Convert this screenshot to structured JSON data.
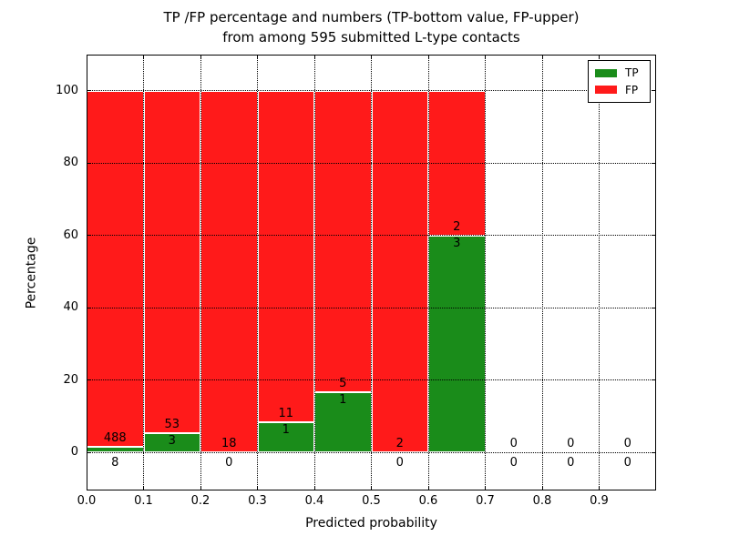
{
  "chart_data": {
    "type": "bar",
    "stacked": true,
    "title": "TP /FP percentage and numbers (TP-bottom value, FP-upper) from among 595 submitted L-type contacts",
    "title_lines": [
      "TP /FP percentage and numbers (TP-bottom value, FP-upper)",
      "from among 595 submitted L-type contacts"
    ],
    "xlabel": "Predicted probability",
    "ylabel": "Percentage",
    "xlim": [
      0.0,
      1.0
    ],
    "ylim": [
      -10.5,
      110
    ],
    "x_ticks": [
      0.0,
      0.1,
      0.2,
      0.3,
      0.4,
      0.5,
      0.6,
      0.7,
      0.8,
      0.9
    ],
    "x_tick_labels": [
      "0.0",
      "0.1",
      "0.2",
      "0.3",
      "0.4",
      "0.5",
      "0.6",
      "0.7",
      "0.8",
      "0.9"
    ],
    "y_ticks": [
      0,
      20,
      40,
      60,
      80,
      100
    ],
    "y_tick_labels": [
      "0",
      "20",
      "40",
      "60",
      "80",
      "100"
    ],
    "grid": true,
    "total_contacts": 595,
    "tp_color": "#1a8c1a",
    "fp_color": "#ff1a1a",
    "bar_edge_color": "#ffffff",
    "bins": [
      {
        "range": [
          0.0,
          0.1
        ],
        "tp": 8,
        "fp": 488,
        "tp_pct": 1.61,
        "fp_pct": 98.39
      },
      {
        "range": [
          0.1,
          0.2
        ],
        "tp": 3,
        "fp": 53,
        "tp_pct": 5.36,
        "fp_pct": 94.64
      },
      {
        "range": [
          0.2,
          0.3
        ],
        "tp": 0,
        "fp": 18,
        "tp_pct": 0.0,
        "fp_pct": 100.0
      },
      {
        "range": [
          0.3,
          0.4
        ],
        "tp": 1,
        "fp": 11,
        "tp_pct": 8.33,
        "fp_pct": 91.67
      },
      {
        "range": [
          0.4,
          0.5
        ],
        "tp": 1,
        "fp": 5,
        "tp_pct": 16.67,
        "fp_pct": 83.33
      },
      {
        "range": [
          0.5,
          0.6
        ],
        "tp": 0,
        "fp": 2,
        "tp_pct": 0.0,
        "fp_pct": 100.0
      },
      {
        "range": [
          0.6,
          0.7
        ],
        "tp": 3,
        "fp": 2,
        "tp_pct": 60.0,
        "fp_pct": 40.0
      },
      {
        "range": [
          0.7,
          0.8
        ],
        "tp": 0,
        "fp": 0,
        "tp_pct": 0.0,
        "fp_pct": 0.0
      },
      {
        "range": [
          0.8,
          0.9
        ],
        "tp": 0,
        "fp": 0,
        "tp_pct": 0.0,
        "fp_pct": 0.0
      },
      {
        "range": [
          0.9,
          1.0
        ],
        "tp": 0,
        "fp": 0,
        "tp_pct": 0.0,
        "fp_pct": 0.0
      }
    ],
    "legend": {
      "position": "upper-right",
      "entries": [
        {
          "label": "TP",
          "color": "#1a8c1a"
        },
        {
          "label": "FP",
          "color": "#ff1a1a"
        }
      ]
    }
  }
}
